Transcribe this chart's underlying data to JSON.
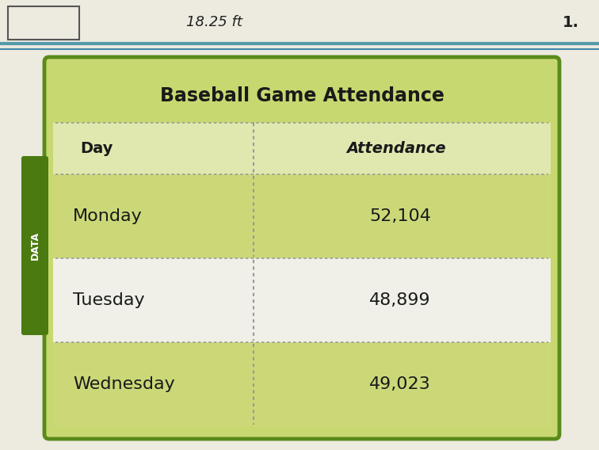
{
  "title": "Baseball Game Attendance",
  "col_headers": [
    "Day",
    "Attendance"
  ],
  "rows": [
    [
      "Monday",
      "52,104"
    ],
    [
      "Tuesday",
      "48,899"
    ],
    [
      "Wednesday",
      "49,023"
    ]
  ],
  "bg_page_color": "#e8e4d8",
  "table_border_color": "#5a8a1a",
  "table_outer_fill": "#c8d870",
  "table_inner_fill": "#ddeaa0",
  "row_green_bg": "#ccd878",
  "row_white_bg": "#f0f0e8",
  "header_row_bg": "#e0e8b0",
  "dotted_line_color": "#999999",
  "data_label": "DATA",
  "data_label_bg": "#4a7a10",
  "data_label_color": "#ffffff",
  "title_fontsize": 17,
  "header_fontsize": 14,
  "data_fontsize": 16,
  "top_text": "18.25 ft",
  "top_right_text": "1.",
  "teal_line_color": "#5599aa",
  "page_line_color": "#4488aa"
}
